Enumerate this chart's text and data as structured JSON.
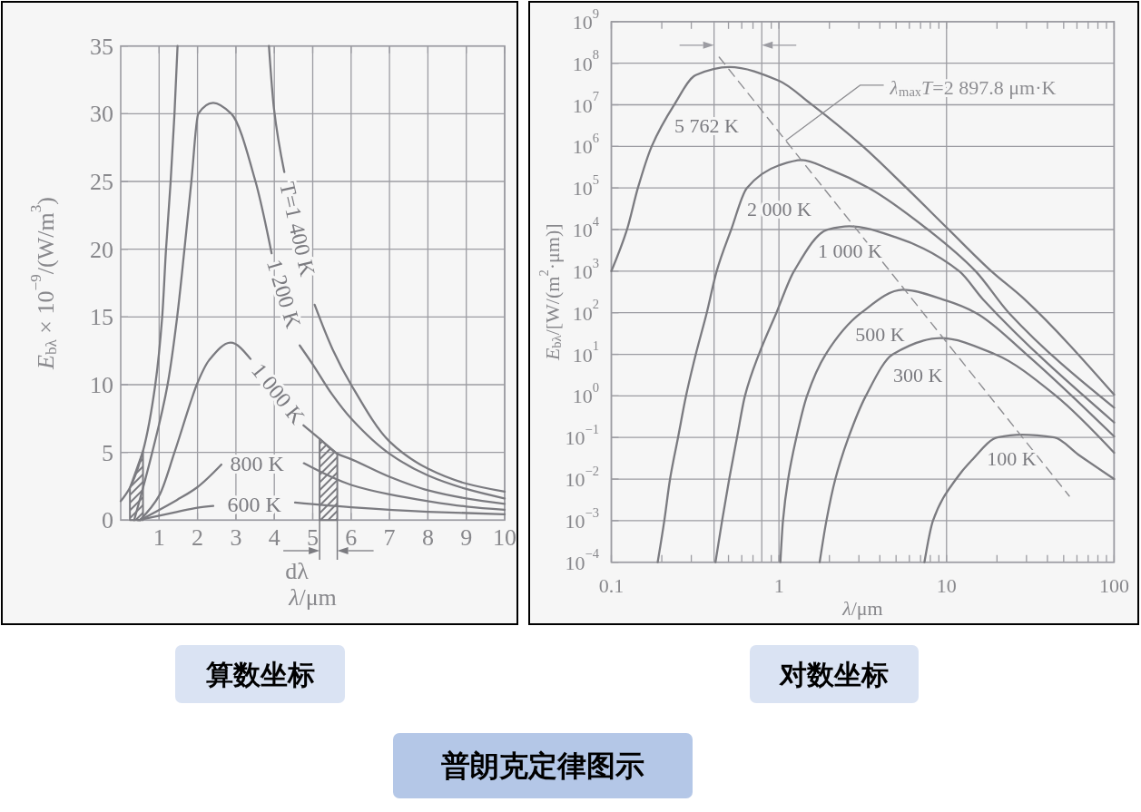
{
  "chart_data": [
    {
      "type": "line",
      "title": "算数坐标",
      "xlabel": "*λ*/μm",
      "ylabel": "*E*$_{bλ}$ × 10$^{−9}$/(W/m$^{3}$)",
      "xlim": [
        0,
        10
      ],
      "ylim": [
        0,
        35
      ],
      "xticks": [
        1,
        2,
        3,
        4,
        5,
        6,
        7,
        8,
        9,
        10
      ],
      "yticks": [
        0,
        5,
        10,
        15,
        20,
        25,
        30,
        35
      ],
      "grid": true,
      "series": [
        {
          "name": "T=1 400 K",
          "color": "#7b7b80",
          "x": [
            0,
            0.24,
            0.58,
            0.9,
            1.08,
            1.18,
            1.3,
            1.4,
            1.48,
            2.7,
            3.86,
            3.99,
            4.26,
            4.6,
            5.05,
            5.52,
            6,
            7,
            8,
            9,
            10
          ],
          "values": [
            1.4,
            2.4,
            5.1,
            10,
            15,
            20,
            25,
            30,
            35,
            null,
            35,
            30.4,
            25.7,
            null,
            15.9,
            12.6,
            10,
            5.8,
            3.8,
            2.7,
            2.1
          ]
        },
        {
          "name": "1 200 K",
          "color": "#7b7b80",
          "x": [
            0.35,
            0.82,
            1.22,
            1.47,
            1.66,
            1.84,
            2.02,
            2.41,
            2.88,
            3.51,
            3.93,
            4.25,
            4.66,
            5,
            5.5,
            6,
            7,
            8,
            9,
            10
          ],
          "values": [
            0,
            5,
            10,
            15,
            20,
            25,
            30,
            30.8,
            30,
            25,
            19.7,
            null,
            12.9,
            11.5,
            9.3,
            7.5,
            4.9,
            3.3,
            2.3,
            1.6
          ]
        },
        {
          "name": "1 000 K",
          "color": "#7b7b80",
          "x": [
            0.5,
            1,
            1.4,
            1.82,
            1.98,
            2.3,
            2.86,
            3.38,
            4.1,
            4.76,
            5.18,
            5.64,
            6,
            7,
            8,
            9,
            10
          ],
          "values": [
            0,
            1.8,
            5,
            8.7,
            10,
            11.8,
            13.1,
            11.9,
            null,
            7,
            6,
            4.9,
            4.5,
            3.2,
            2.2,
            1.6,
            1.2
          ]
        },
        {
          "name": "800 K",
          "color": "#7b7b80",
          "x": [
            0.5,
            1.47,
            1.98,
            2.62,
            3.55,
            4.77,
            6,
            7,
            8,
            9,
            10
          ],
          "values": [
            0,
            1.5,
            2.4,
            4.1,
            null,
            4.2,
            2.6,
            1.9,
            1.4,
            1,
            0.76
          ]
        },
        {
          "name": "600 K",
          "color": "#7b7b80",
          "x": [
            0.45,
            1.45,
            2,
            2.41,
            3.48,
            4.54,
            6,
            8,
            10
          ],
          "values": [
            0,
            0.6,
            0.92,
            1.05,
            null,
            1.3,
            0.95,
            0.62,
            0.43
          ]
        },
        {
          "type": "area",
          "color": "#7b7b80",
          "x": [
            0.24,
            0.58
          ],
          "values": [
            2.4,
            5.1
          ]
        },
        {
          "type": "area",
          "color": "#7b7b80",
          "x": [
            5.18,
            5.64
          ],
          "values": [
            6,
            4.9
          ]
        }
      ],
      "annotations": [
        "dλ",
        "普朗克定律图示"
      ]
    },
    {
      "type": "line",
      "title": "对数坐标",
      "xlabel": "*λ*/μm",
      "ylabel": "*E*$_{bλ}$/[W/(m$^{2}$·μm)]",
      "log": "xy",
      "xlim": [
        0.1,
        100
      ],
      "ylim": [
        0.0001,
        1000000000.0
      ],
      "xticks": [
        0.1,
        {
          "value": 0.2,
          "label": null
        },
        {
          "value": 0.3,
          "label": null
        },
        {
          "value": 0.5,
          "label": null
        },
        {
          "value": 0.6,
          "label": null
        },
        {
          "value": 0.7,
          "label": null
        },
        {
          "value": 0.9,
          "label": null
        },
        1,
        {
          "value": 2,
          "label": null
        },
        {
          "value": 3,
          "label": null
        },
        {
          "value": 4,
          "label": null
        },
        {
          "value": 5,
          "label": null
        },
        {
          "value": 6,
          "label": null
        },
        {
          "value": 7,
          "label": null
        },
        {
          "value": 8,
          "label": null
        },
        {
          "value": 9,
          "label": null
        },
        10,
        {
          "value": 20,
          "label": null
        },
        {
          "value": 30,
          "label": null
        },
        {
          "value": 40,
          "label": null
        },
        {
          "value": 50,
          "label": null
        },
        {
          "value": 60,
          "label": null
        },
        {
          "value": 70,
          "label": null
        },
        {
          "value": 80,
          "label": null
        },
        {
          "value": 90,
          "label": null
        },
        100
      ],
      "yticks": [
        {
          "value": 0.0001,
          "label": "10$^{−4}$"
        },
        {
          "value": 0.001,
          "label": "10$^{−3}$"
        },
        {
          "value": 0.01,
          "label": "10$^{−2}$"
        },
        {
          "value": 0.1,
          "label": "10$^{−1}$"
        },
        {
          "value": 1,
          "label": "10$^{0}$"
        },
        {
          "value": 10,
          "label": "10$^{1}$"
        },
        {
          "value": 100,
          "label": "10$^{2}$"
        },
        {
          "value": 1000,
          "label": "10$^{3}$"
        },
        {
          "value": 10000.0,
          "label": "10$^{4}$"
        },
        {
          "value": 100000.0,
          "label": "10$^{5}$"
        },
        {
          "value": 1000000.0,
          "label": "10$^{6}$"
        },
        {
          "value": 10000000.0,
          "label": "10$^{7}$"
        },
        {
          "value": 100000000.0,
          "label": "10$^{8}$"
        },
        {
          "value": 1000000000.0,
          "label": "10$^{9}$"
        }
      ],
      "grid": true,
      "series": [
        {
          "name": "5 762 K",
          "color": "#7b7b80",
          "x": [
            0.1,
            0.124,
            0.144,
            0.174,
            0.237,
            0.319,
            0.505,
            1,
            1.53,
            3.17,
            5.77,
            10.3,
            18.5,
            29.2,
            100
          ],
          "values": [
            1000,
            10000.0,
            100000.0,
            1000000.0,
            10000000.0,
            52000000.0,
            81000000.0,
            38000000.0,
            11000000.0,
            1000000.0,
            100000.0,
            10000.0,
            1000,
            210,
            1.07
          ]
        },
        {
          "name": "2 000 K",
          "color": "#7b7b80",
          "x": [
            0.189,
            0.207,
            0.224,
            0.25,
            0.279,
            0.319,
            0.371,
            0.425,
            0.519,
            0.644,
            1,
            1.37,
            2,
            3.44,
            7.74,
            14.9,
            23.5,
            100
          ],
          "values": [
            0.0001,
            0.001,
            0.01,
            0.1,
            1,
            10,
            100,
            1000,
            10000.0,
            100000.0,
            350000.0,
            470000.0,
            280000.0,
            100000.0,
            10000.0,
            1000,
            100,
            0.52
          ]
        },
        {
          "name": "1 000 K",
          "color": "#7b7b80",
          "x": [
            0.418,
            0.458,
            0.505,
            0.562,
            0.627,
            0.759,
            0.966,
            1.23,
            1.95,
            2.63,
            5,
            11.9,
            16.5,
            100
          ],
          "values": [
            0.0001,
            0.001,
            0.01,
            0.1,
            1,
            10,
            100,
            1000,
            10000.0,
            12000.0,
            6500,
            1000,
            210,
            0.23
          ]
        },
        {
          "name": "500 K",
          "color": "#7b7b80",
          "x": [
            1.02,
            1.057,
            1.135,
            1.27,
            1.47,
            1.9,
            3.1,
            5.47,
            10,
            14.9,
            30,
            100
          ],
          "values": [
            0.0001,
            0.001,
            0.01,
            0.1,
            1,
            10,
            100,
            355,
            195,
            100,
            10,
            0.106
          ]
        },
        {
          "name": "300 K",
          "color": "#7b7b80",
          "x": [
            1.75,
            1.92,
            2.17,
            2.6,
            3.3,
            4.78,
            9.2,
            19.5,
            45,
            100
          ],
          "values": [
            0.0001,
            0.001,
            0.01,
            0.1,
            1,
            10,
            24.5,
            10,
            1,
            0.043
          ]
        },
        {
          "name": "100 K",
          "color": "#7b7b80",
          "x": [
            7.38,
            8.3,
            11.4,
            14.1,
            20.1,
            27.9,
            44,
            61,
            100
          ],
          "values": [
            0.0001,
            0.001,
            0.01,
            0.028,
            0.1,
            0.117,
            0.1,
            0.039,
            0.01
          ]
        },
        {
          "name": "*λ*$_{max}$*T*=2 897.8 μm·K",
          "color": "#8e8e92",
          "line_style": "dashed",
          "x": [
            0.44,
            54
          ],
          "values": [
            140000000.0,
            0.0039
          ]
        }
      ],
      "ref_lines": [
        {
          "axis": "x",
          "value": 0.41
        },
        {
          "axis": "x",
          "value": 0.79
        }
      ]
    }
  ]
}
